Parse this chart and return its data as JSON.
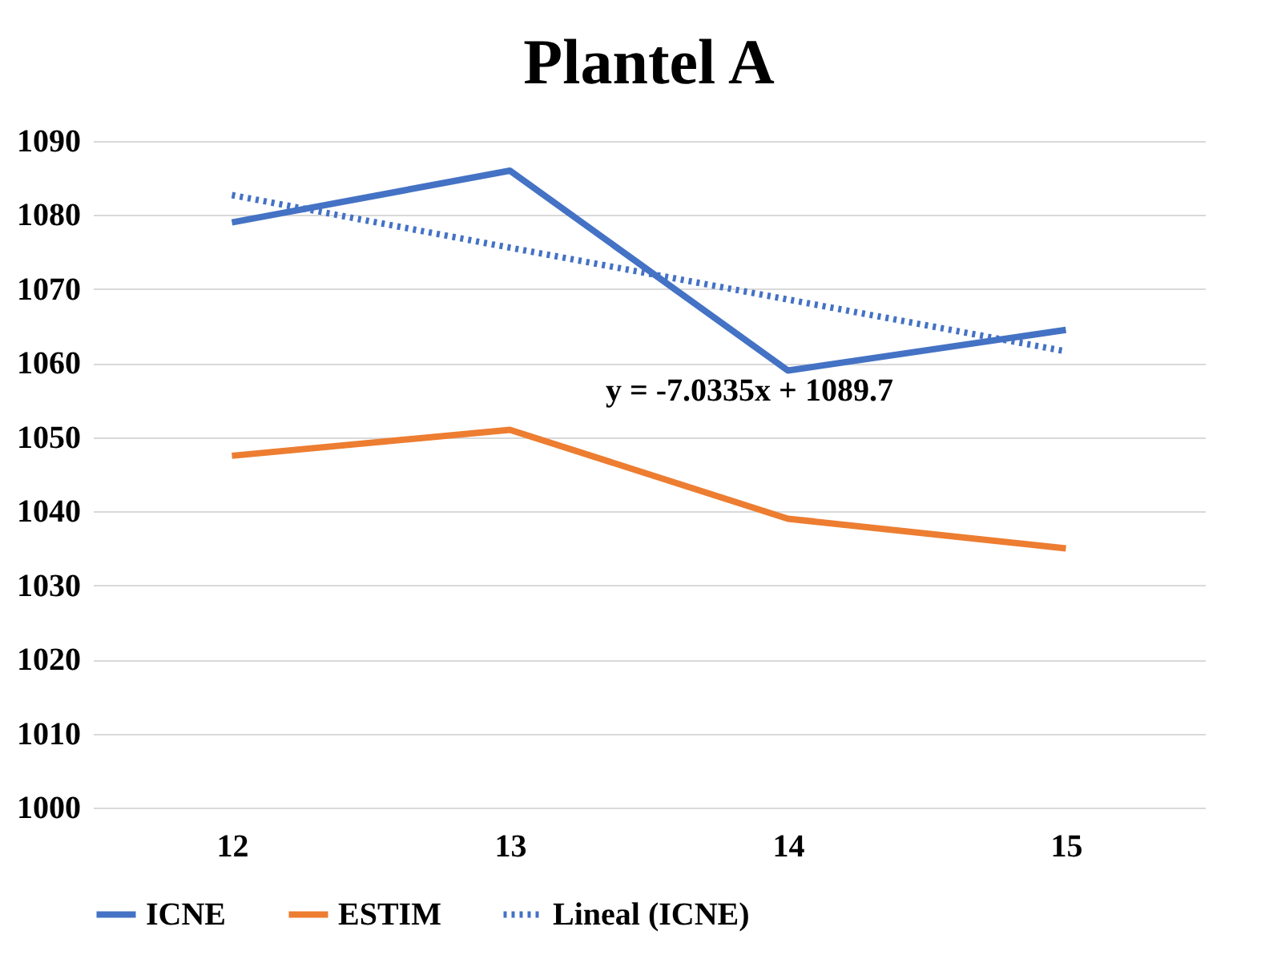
{
  "chart_data": {
    "type": "line",
    "title": "Plantel A",
    "categories": [
      "12",
      "13",
      "14",
      "15"
    ],
    "series": [
      {
        "name": "ICNE",
        "color": "#4472c4",
        "values": [
          1079,
          1086,
          1059,
          1064.5
        ],
        "line_style": "solid"
      },
      {
        "name": "ESTIM",
        "color": "#ed7d31",
        "values": [
          1047.5,
          1051,
          1039,
          1035
        ],
        "line_style": "solid"
      },
      {
        "name": "Lineal (ICNE)",
        "color": "#4472c4",
        "values": [
          1082.7,
          1075.6,
          1068.6,
          1061.6
        ],
        "line_style": "dotted"
      }
    ],
    "ylim": [
      1000,
      1090
    ],
    "yticks": [
      1000,
      1010,
      1020,
      1030,
      1040,
      1050,
      1060,
      1070,
      1080,
      1090
    ],
    "grid": "y",
    "legend": "bottom",
    "marker": "none",
    "annotations": [
      "y = -7.0335x + 1089.7"
    ]
  }
}
